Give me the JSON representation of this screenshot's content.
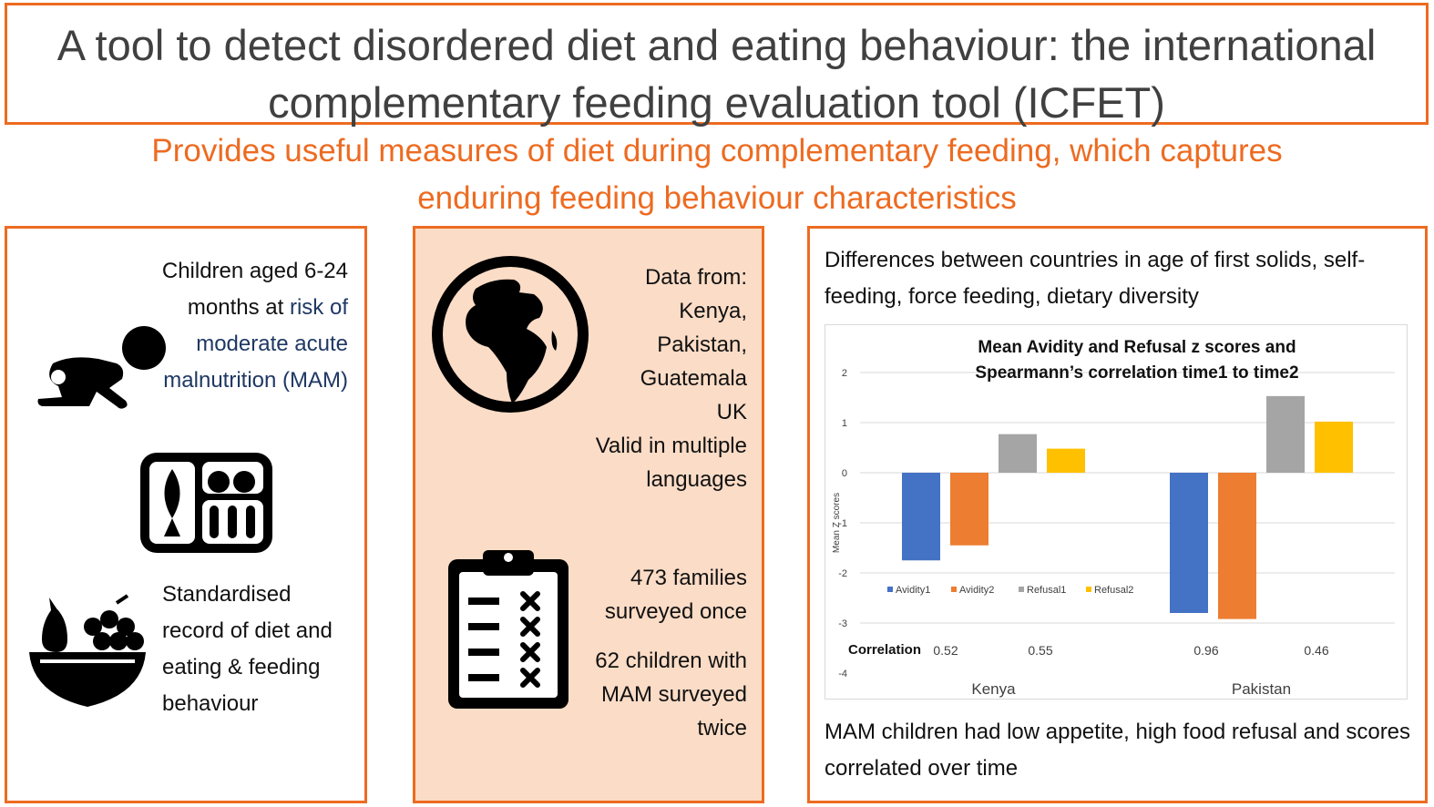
{
  "title": "A tool to detect disordered diet and eating behaviour: the international complementary feeding evaluation tool (ICFET)",
  "subtitle": "Provides useful measures of diet during complementary feeding, which captures enduring feeding behaviour  characteristics",
  "left_panel": {
    "children_prefix": "Children aged 6-24 months at",
    "children_highlight": "risk of moderate acute malnutrition (MAM)",
    "record_text": "Standardised record of diet and eating & feeding behaviour"
  },
  "middle_panel": {
    "data_lines": [
      "Data from:",
      "Kenya,",
      "Pakistan,",
      "Guatemala",
      "UK",
      "Valid in multiple",
      "languages"
    ],
    "families_text": "473 families surveyed once",
    "mam_text": "62 children with MAM surveyed twice"
  },
  "right_panel": {
    "differences_text": "Differences between countries in age of first solids, self-feeding, force feeding, dietary diversity",
    "finding_text": "MAM children had low appetite, high food refusal and scores correlated over time"
  },
  "colors": {
    "accent": "#ed6b21",
    "avidity1": "#4472c4",
    "avidity2": "#ed7d31",
    "refusal1": "#a5a5a5",
    "refusal2": "#ffc000"
  },
  "chart_data": {
    "type": "bar",
    "title": [
      "Mean Avidity and Refusal z scores and",
      "Spearmann’s correlation time1 to time2"
    ],
    "categories": [
      "Kenya",
      "Pakistan"
    ],
    "series": [
      {
        "name": "Avidity1",
        "values": [
          -1.75,
          -2.8
        ]
      },
      {
        "name": "Avidity2",
        "values": [
          -1.45,
          -2.92
        ]
      },
      {
        "name": "Refusal1",
        "values": [
          0.77,
          1.53
        ]
      },
      {
        "name": "Refusal2",
        "values": [
          0.48,
          1.02
        ]
      }
    ],
    "ylabel": "Mean Z scores",
    "xlabel": "",
    "ylim": [
      -4,
      2
    ],
    "yticks": [
      "2",
      "1",
      "0",
      "-1",
      "-2",
      "-3",
      "-4"
    ],
    "grid": true,
    "legend": "bottom-left, inside",
    "correlation_label": "Correlation",
    "correlations": [
      {
        "category": "Kenya",
        "values": [
          "0.52",
          "0.55"
        ]
      },
      {
        "category": "Pakistan",
        "values": [
          "0.96",
          "0.46"
        ]
      }
    ]
  }
}
